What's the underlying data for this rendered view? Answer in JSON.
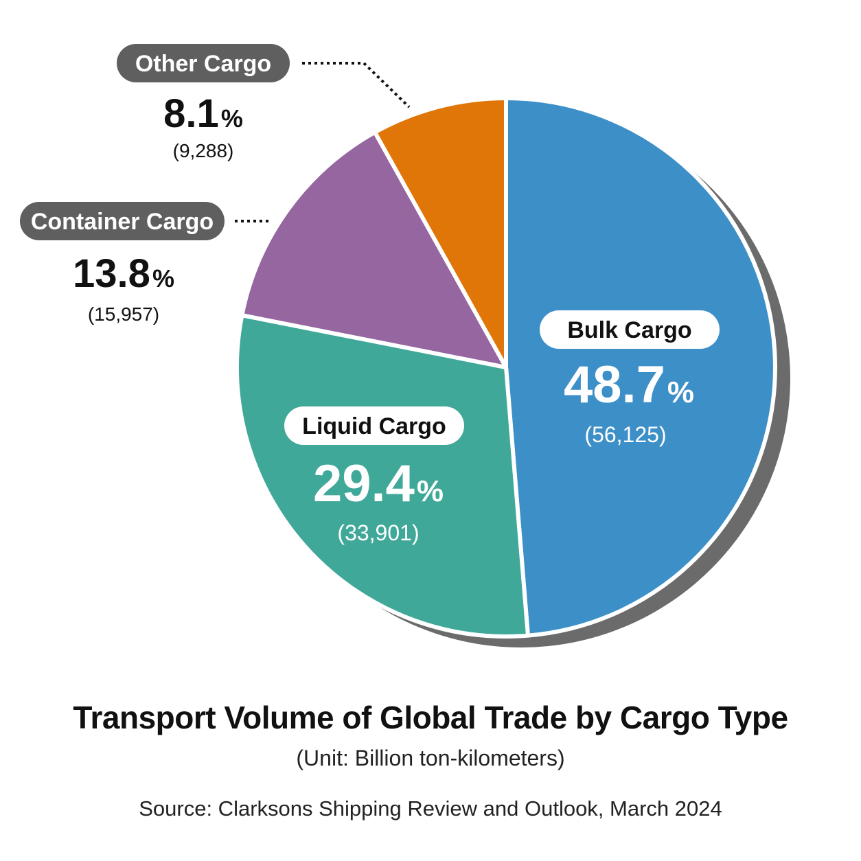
{
  "chart_data": {
    "type": "pie",
    "title": "Transport Volume of Global Trade by Cargo Type",
    "unit": "(Unit: Billion ton-kilometers)",
    "source": "Source: Clarksons Shipping Review and Outlook, March 2024",
    "slices": [
      {
        "label": "Bulk Cargo",
        "percent": 48.7,
        "pct_text": "48.7",
        "value_text": "(56,125)",
        "color": "#3d8fc8",
        "label_placement": "inside"
      },
      {
        "label": "Liquid Cargo",
        "percent": 29.4,
        "pct_text": "29.4",
        "value_text": "(33,901)",
        "color": "#3fa898",
        "label_placement": "inside"
      },
      {
        "label": "Container Cargo",
        "percent": 13.8,
        "pct_text": "13.8",
        "value_text": "(15,957)",
        "color": "#9566a0",
        "label_placement": "outside"
      },
      {
        "label": "Other Cargo",
        "percent": 8.1,
        "pct_text": "8.1",
        "value_text": "(9,288)",
        "color": "#e07608",
        "label_placement": "outside"
      }
    ],
    "percent_sign": "%",
    "shadow_color": "#6b6b6b"
  }
}
